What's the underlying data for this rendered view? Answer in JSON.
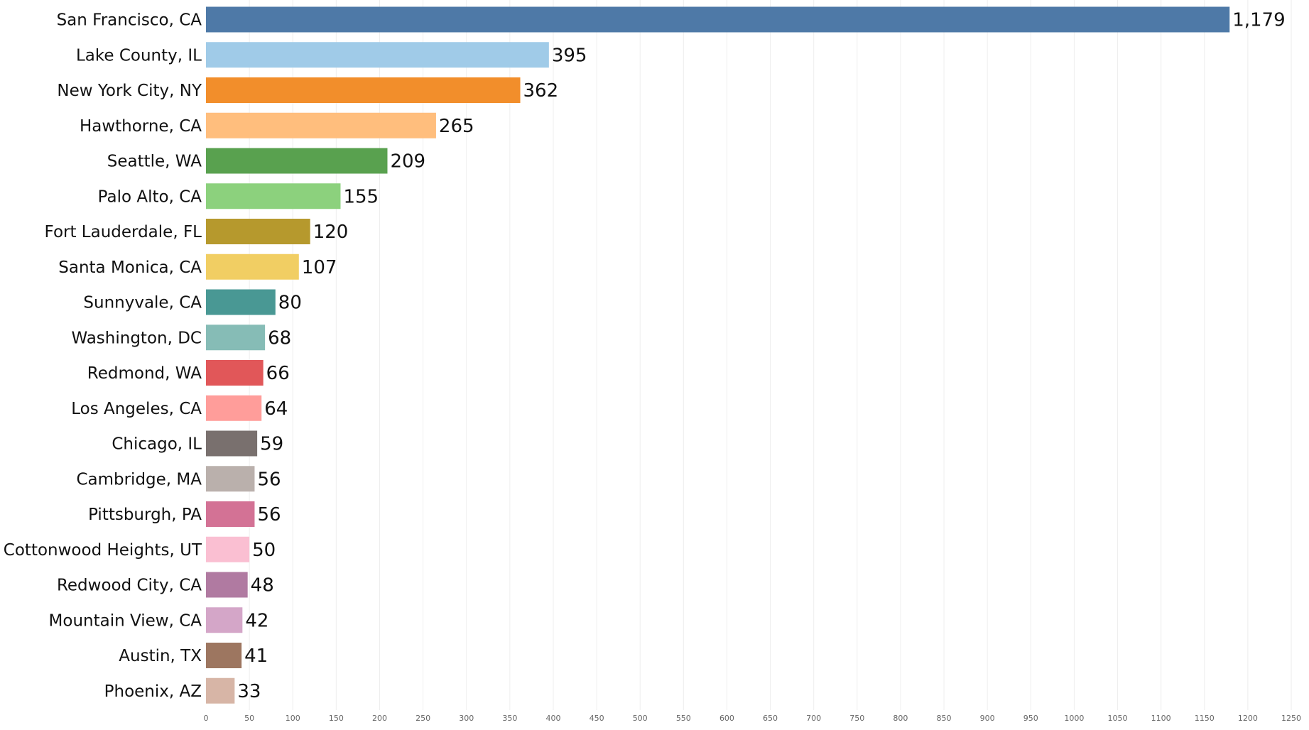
{
  "chart_data": {
    "type": "bar",
    "orientation": "horizontal",
    "categories": [
      "San Francisco, CA",
      "Lake County, IL",
      "New York City, NY",
      "Hawthorne, CA",
      "Seattle, WA",
      "Palo Alto, CA",
      "Fort Lauderdale, FL",
      "Santa Monica, CA",
      "Sunnyvale, CA",
      "Washington, DC",
      "Redmond, WA",
      "Los Angeles, CA",
      "Chicago, IL",
      "Cambridge, MA",
      "Pittsburgh, PA",
      "Cottonwood Heights, UT",
      "Redwood City, CA",
      "Mountain View, CA",
      "Austin, TX",
      "Phoenix, AZ"
    ],
    "values": [
      1179,
      395,
      362,
      265,
      209,
      155,
      120,
      107,
      80,
      68,
      66,
      64,
      59,
      56,
      56,
      50,
      48,
      42,
      41,
      33
    ],
    "value_labels": [
      "1,179",
      "395",
      "362",
      "265",
      "209",
      "155",
      "120",
      "107",
      "80",
      "68",
      "66",
      "64",
      "59",
      "56",
      "56",
      "50",
      "48",
      "42",
      "41",
      "33"
    ],
    "colors": [
      "#4e79a7",
      "#a0cbe8",
      "#f28e2b",
      "#ffbe7d",
      "#59a14f",
      "#8cd17d",
      "#b6992d",
      "#f1ce63",
      "#499894",
      "#86bcb6",
      "#e15759",
      "#ff9d9a",
      "#79706e",
      "#bab0ac",
      "#d37295",
      "#fabfd2",
      "#b07aa1",
      "#d4a6c8",
      "#9d7660",
      "#d7b5a6"
    ],
    "xlim": [
      0,
      1250
    ],
    "x_ticks": [
      0,
      50,
      100,
      150,
      200,
      250,
      300,
      350,
      400,
      450,
      500,
      550,
      600,
      650,
      700,
      750,
      800,
      850,
      900,
      950,
      1000,
      1050,
      1100,
      1150,
      1200,
      1250
    ],
    "grid": true,
    "title": "",
    "xlabel": "",
    "ylabel": ""
  }
}
